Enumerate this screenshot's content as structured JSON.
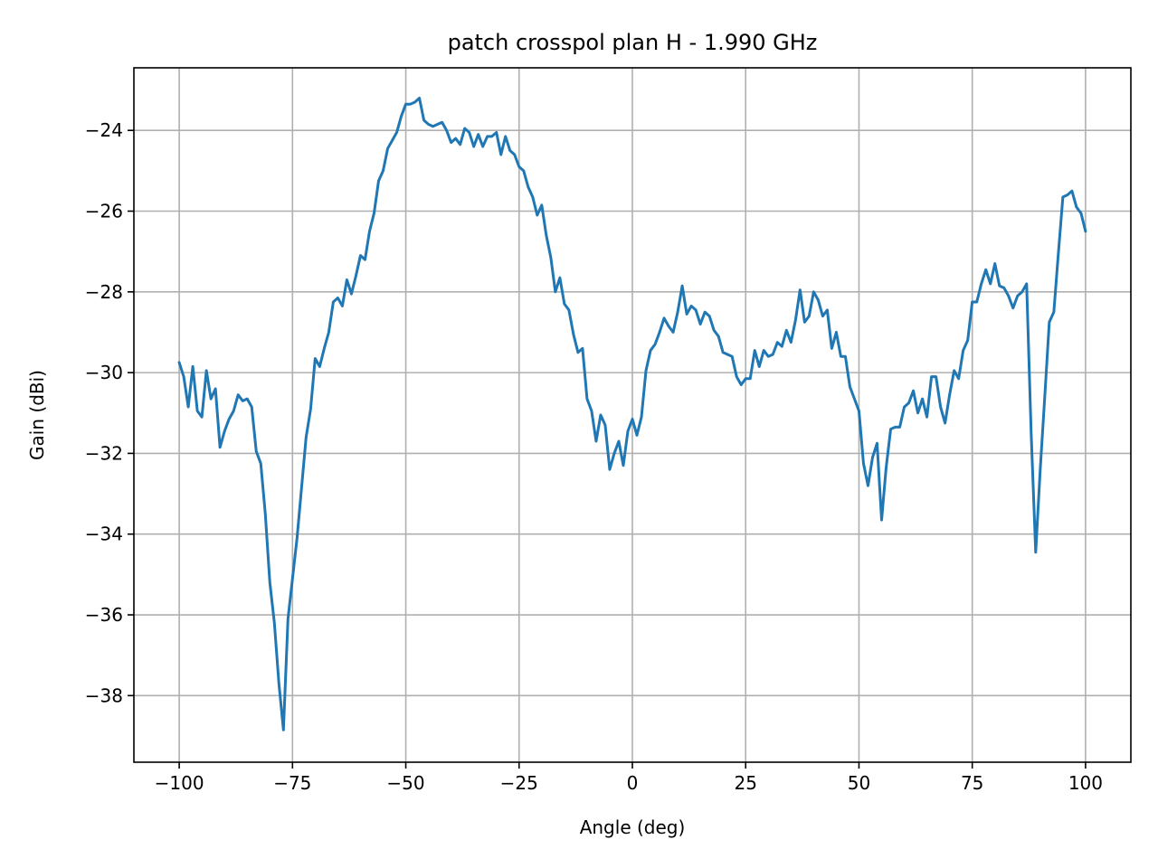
{
  "chart_data": {
    "type": "line",
    "title": "patch crosspol plan H - 1.990 GHz",
    "xlabel": "Angle (deg)",
    "ylabel": "Gain (dBi)",
    "xlim": [
      -110,
      110
    ],
    "ylim": [
      -39.65,
      -22.45
    ],
    "xticks": [
      -100,
      -75,
      -50,
      -25,
      0,
      25,
      50,
      75,
      100
    ],
    "xtick_labels": [
      "−100",
      "−75",
      "−50",
      "−25",
      "0",
      "25",
      "50",
      "75",
      "100"
    ],
    "yticks": [
      -38,
      -36,
      -34,
      -32,
      -30,
      -28,
      -26,
      -24
    ],
    "ytick_labels": [
      "−38",
      "−36",
      "−34",
      "−32",
      "−30",
      "−28",
      "−26",
      "−24"
    ],
    "grid": true,
    "colors": {
      "series": "#1f77b4",
      "grid": "#b0b0b0"
    },
    "series": [
      {
        "x": [
          -100,
          -99,
          -98,
          -97,
          -96,
          -95,
          -94,
          -93,
          -92,
          -91,
          -90,
          -89,
          -88,
          -87,
          -86,
          -85,
          -84,
          -83,
          -82,
          -81,
          -80,
          -79,
          -78,
          -77,
          -76,
          -75,
          -74,
          -73,
          -72,
          -71,
          -70,
          -69,
          -68,
          -67,
          -66,
          -65,
          -64,
          -63,
          -62,
          -61,
          -60,
          -59,
          -58,
          -57,
          -56,
          -55,
          -54,
          -53,
          -52,
          -51,
          -50,
          -49,
          -48,
          -47,
          -46,
          -45,
          -44,
          -43,
          -42,
          -41,
          -40,
          -39,
          -38,
          -37,
          -36,
          -35,
          -34,
          -33,
          -32,
          -31,
          -30,
          -29,
          -28,
          -27,
          -26,
          -25,
          -24,
          -23,
          -22,
          -21,
          -20,
          -19,
          -18,
          -17,
          -16,
          -15,
          -14,
          -13,
          -12,
          -11,
          -10,
          -9,
          -8,
          -7,
          -6,
          -5,
          -4,
          -3,
          -2,
          -1,
          0,
          1,
          2,
          3,
          4,
          5,
          6,
          7,
          8,
          9,
          10,
          11,
          12,
          13,
          14,
          15,
          16,
          17,
          18,
          19,
          20,
          21,
          22,
          23,
          24,
          25,
          26,
          27,
          28,
          29,
          30,
          31,
          32,
          33,
          34,
          35,
          36,
          37,
          38,
          39,
          40,
          41,
          42,
          43,
          44,
          45,
          46,
          47,
          48,
          49,
          50,
          51,
          52,
          53,
          54,
          55,
          56,
          57,
          58,
          59,
          60,
          61,
          62,
          63,
          64,
          65,
          66,
          67,
          68,
          69,
          70,
          71,
          72,
          73,
          74,
          75,
          76,
          77,
          78,
          79,
          80,
          81,
          82,
          83,
          84,
          85,
          86,
          87,
          88,
          89,
          90,
          91,
          92,
          93,
          94,
          95,
          96,
          97,
          98,
          99,
          100
        ],
        "y": [
          -29.75,
          -30.1,
          -30.85,
          -29.85,
          -30.95,
          -31.1,
          -29.95,
          -30.65,
          -30.4,
          -31.85,
          -31.45,
          -31.15,
          -30.95,
          -30.55,
          -30.7,
          -30.65,
          -30.85,
          -31.95,
          -32.25,
          -33.5,
          -35.2,
          -36.2,
          -37.7,
          -38.85,
          -36.1,
          -35.1,
          -34.1,
          -32.85,
          -31.6,
          -30.9,
          -29.65,
          -29.85,
          -29.4,
          -29.0,
          -28.25,
          -28.15,
          -28.35,
          -27.7,
          -28.05,
          -27.6,
          -27.1,
          -27.2,
          -26.5,
          -26.05,
          -25.25,
          -25.0,
          -24.45,
          -24.25,
          -24.05,
          -23.65,
          -23.35,
          -23.35,
          -23.3,
          -23.2,
          -23.75,
          -23.85,
          -23.9,
          -23.85,
          -23.8,
          -24.0,
          -24.3,
          -24.2,
          -24.35,
          -23.95,
          -24.05,
          -24.4,
          -24.1,
          -24.4,
          -24.15,
          -24.15,
          -24.05,
          -24.6,
          -24.15,
          -24.5,
          -24.6,
          -24.9,
          -25.0,
          -25.4,
          -25.65,
          -26.1,
          -25.85,
          -26.6,
          -27.15,
          -28.0,
          -27.65,
          -28.3,
          -28.45,
          -29.05,
          -29.5,
          -29.4,
          -30.65,
          -30.95,
          -31.7,
          -31.05,
          -31.3,
          -32.4,
          -32.0,
          -31.7,
          -32.3,
          -31.45,
          -31.15,
          -31.55,
          -31.1,
          -29.95,
          -29.45,
          -29.3,
          -29.0,
          -28.65,
          -28.85,
          -29.0,
          -28.5,
          -27.85,
          -28.55,
          -28.35,
          -28.45,
          -28.8,
          -28.5,
          -28.6,
          -28.95,
          -29.1,
          -29.5,
          -29.55,
          -29.6,
          -30.1,
          -30.3,
          -30.15,
          -30.15,
          -29.45,
          -29.85,
          -29.45,
          -29.6,
          -29.55,
          -29.25,
          -29.35,
          -28.95,
          -29.25,
          -28.7,
          -27.95,
          -28.75,
          -28.6,
          -28.0,
          -28.2,
          -28.6,
          -28.45,
          -29.4,
          -29.0,
          -29.6,
          -29.6,
          -30.35,
          -30.65,
          -30.95,
          -32.25,
          -32.8,
          -32.1,
          -31.75,
          -33.65,
          -32.35,
          -31.4,
          -31.35,
          -31.35,
          -30.85,
          -30.75,
          -30.45,
          -31.0,
          -30.65,
          -31.1,
          -30.1,
          -30.1,
          -30.85,
          -31.25,
          -30.55,
          -29.95,
          -30.15,
          -29.45,
          -29.2,
          -28.25,
          -28.25,
          -27.8,
          -27.45,
          -27.8,
          -27.3,
          -27.85,
          -27.9,
          -28.1,
          -28.4,
          -28.1,
          -28.0,
          -27.8,
          -31.5,
          -34.45,
          -32.4,
          -30.6,
          -28.75,
          -28.5,
          -27.05,
          -25.65,
          -25.6,
          -25.5,
          -25.9,
          -26.05,
          -26.5
        ]
      }
    ]
  }
}
